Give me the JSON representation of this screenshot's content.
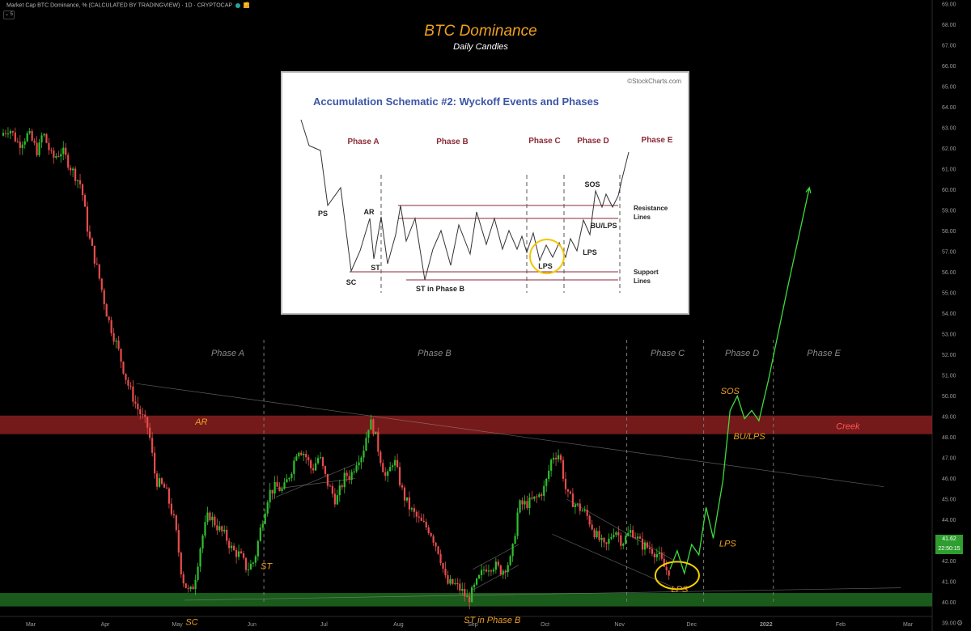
{
  "header": {
    "symbol_line": "Market Cap BTC Dominance, % (CALCULATED BY TRADINGVIEW) · 1D · CRYPTOCAP",
    "collapse_label": "⌄ 5"
  },
  "title": "BTC Dominance",
  "subtitle": "Daily Candles",
  "price_tag": {
    "value": "41.62",
    "timer": "22:50:15"
  },
  "colors": {
    "background": "#000000",
    "orange": "#f0a020",
    "up_candle": "#2ec02e",
    "down_candle": "#e84c4c",
    "creek_zone": "#8a1f1f",
    "support_zone": "#1f6a1f",
    "projection": "#3ddc3d",
    "phase_label": "#8a8a8a",
    "inset_title": "#3b55a6",
    "inset_phase": "#8a2a35"
  },
  "icons": {
    "settings": "gear-icon",
    "alert": "bolt-icon",
    "status": "green-dot-icon"
  },
  "chart_data": {
    "type": "candlestick",
    "ylim": [
      38.3,
      69.6
    ],
    "yticks": [
      "69.00",
      "68.00",
      "67.00",
      "66.00",
      "65.00",
      "64.00",
      "63.00",
      "62.00",
      "61.00",
      "60.00",
      "59.00",
      "58.00",
      "57.00",
      "56.00",
      "55.00",
      "54.00",
      "53.00",
      "52.00",
      "51.00",
      "50.00",
      "49.00",
      "48.00",
      "47.00",
      "46.00",
      "45.00",
      "44.00",
      "43.00",
      "42.00",
      "41.00",
      "40.00",
      "39.00"
    ],
    "xticks": [
      "Mar",
      "Apr",
      "May",
      "Jun",
      "Jul",
      "Aug",
      "Sep",
      "Oct",
      "Nov",
      "Dec",
      "2022",
      "Feb",
      "Mar"
    ],
    "xtick_bold": "2022",
    "price_path": [
      [
        "2021-03-01",
        62.5
      ],
      [
        "2021-03-06",
        63.0
      ],
      [
        "2021-03-10",
        62.2
      ],
      [
        "2021-03-14",
        62.7
      ],
      [
        "2021-03-18",
        61.8
      ],
      [
        "2021-03-20",
        62.8
      ],
      [
        "2021-03-24",
        61.5
      ],
      [
        "2021-03-28",
        61.9
      ],
      [
        "2021-04-01",
        61.0
      ],
      [
        "2021-04-05",
        60.2
      ],
      [
        "2021-04-08",
        57.8
      ],
      [
        "2021-04-12",
        56.0
      ],
      [
        "2021-04-16",
        53.8
      ],
      [
        "2021-04-20",
        52.4
      ],
      [
        "2021-04-24",
        50.7
      ],
      [
        "2021-04-28",
        49.5
      ],
      [
        "2021-05-03",
        48.4
      ],
      [
        "2021-05-06",
        45.9
      ],
      [
        "2021-05-10",
        45.5
      ],
      [
        "2021-05-14",
        43.8
      ],
      [
        "2021-05-17",
        41.2
      ],
      [
        "2021-05-20",
        40.4
      ],
      [
        "2021-05-22",
        40.9
      ],
      [
        "2021-05-25",
        43.0
      ],
      [
        "2021-05-28",
        44.3
      ],
      [
        "2021-06-01",
        43.6
      ],
      [
        "2021-06-04",
        43.2
      ],
      [
        "2021-06-07",
        42.5
      ],
      [
        "2021-06-10",
        42.3
      ],
      [
        "2021-06-13",
        41.6
      ],
      [
        "2021-06-16",
        42.0
      ],
      [
        "2021-06-19",
        43.8
      ],
      [
        "2021-06-22",
        45.3
      ],
      [
        "2021-06-25",
        45.6
      ],
      [
        "2021-06-28",
        45.4
      ],
      [
        "2021-07-02",
        46.6
      ],
      [
        "2021-07-04",
        47.5
      ],
      [
        "2021-07-07",
        47.2
      ],
      [
        "2021-07-10",
        46.4
      ],
      [
        "2021-07-13",
        47.1
      ],
      [
        "2021-07-16",
        45.9
      ],
      [
        "2021-07-20",
        44.9
      ],
      [
        "2021-07-24",
        46.2
      ],
      [
        "2021-07-26",
        46.1
      ],
      [
        "2021-07-29",
        47.0
      ],
      [
        "2021-07-31",
        47.2
      ],
      [
        "2021-08-03",
        48.8
      ],
      [
        "2021-08-05",
        48.3
      ],
      [
        "2021-08-07",
        47.2
      ],
      [
        "2021-08-10",
        45.9
      ],
      [
        "2021-08-13",
        47.0
      ],
      [
        "2021-08-17",
        45.2
      ],
      [
        "2021-08-20",
        44.5
      ],
      [
        "2021-08-24",
        43.9
      ],
      [
        "2021-08-28",
        43.5
      ],
      [
        "2021-09-01",
        42.4
      ],
      [
        "2021-09-04",
        40.9
      ],
      [
        "2021-09-07",
        40.9
      ],
      [
        "2021-09-10",
        40.6
      ],
      [
        "2021-09-13",
        40.1
      ],
      [
        "2021-09-16",
        40.8
      ],
      [
        "2021-09-20",
        41.7
      ],
      [
        "2021-09-24",
        41.8
      ],
      [
        "2021-09-27",
        41.5
      ],
      [
        "2021-10-01",
        42.1
      ],
      [
        "2021-10-04",
        44.7
      ],
      [
        "2021-10-08",
        44.8
      ],
      [
        "2021-10-12",
        45.1
      ],
      [
        "2021-10-15",
        45.6
      ],
      [
        "2021-10-18",
        47.1
      ],
      [
        "2021-10-21",
        47.2
      ],
      [
        "2021-10-24",
        45.2
      ],
      [
        "2021-10-28",
        44.7
      ],
      [
        "2021-11-01",
        44.3
      ],
      [
        "2021-11-05",
        43.3
      ],
      [
        "2021-11-09",
        42.6
      ],
      [
        "2021-11-13",
        43.6
      ],
      [
        "2021-11-16",
        42.9
      ],
      [
        "2021-11-20",
        43.5
      ],
      [
        "2021-11-24",
        42.8
      ],
      [
        "2021-11-28",
        42.6
      ],
      [
        "2021-12-01",
        42.3
      ],
      [
        "2021-12-04",
        41.6
      ],
      [
        "2021-12-06",
        41.5
      ]
    ],
    "projection": [
      [
        "2021-12-06",
        41.6
      ],
      [
        "2021-12-09",
        42.5
      ],
      [
        "2021-12-12",
        41.4
      ],
      [
        "2021-12-15",
        42.8
      ],
      [
        "2021-12-18",
        42.3
      ],
      [
        "2021-12-21",
        44.6
      ],
      [
        "2021-12-24",
        43.1
      ],
      [
        "2021-12-28",
        45.9
      ],
      [
        "2021-12-31",
        49.3
      ],
      [
        "2022-01-03",
        50.0
      ],
      [
        "2022-01-06",
        48.9
      ],
      [
        "2022-01-09",
        49.3
      ],
      [
        "2022-01-12",
        48.8
      ],
      [
        "2022-01-16",
        50.8
      ],
      [
        "2022-01-24",
        55.3
      ],
      [
        "2022-02-02",
        60.1
      ]
    ],
    "zones": [
      {
        "name": "Creek",
        "from": 48.15,
        "to": 49.05
      },
      {
        "name": "support",
        "from": 39.8,
        "to": 40.45
      }
    ],
    "phase_dividers": [
      "2021-06-20",
      "2021-11-18",
      "2021-12-20",
      "2022-01-18"
    ],
    "phase_labels": [
      "Phase A",
      "Phase B",
      "Phase C",
      "Phase D",
      "Phase E"
    ],
    "annotations": [
      "AR",
      "SC",
      "ST",
      "ST in Phase B",
      "LPS",
      "LPS",
      "SOS",
      "BU/LPS",
      "Creek"
    ]
  },
  "inset": {
    "source": "©StockCharts.com",
    "title": "Accumulation Schematic #2: Wyckoff Events and Phases",
    "phases": [
      "Phase A",
      "Phase B",
      "Phase C",
      "Phase D",
      "Phase E"
    ],
    "events": [
      "PS",
      "AR",
      "SC",
      "ST",
      "ST in Phase B",
      "LPS",
      "LPS",
      "SOS",
      "BU/LPS"
    ],
    "line_labels": [
      "Resistance",
      "Lines",
      "Support",
      "Lines"
    ]
  }
}
